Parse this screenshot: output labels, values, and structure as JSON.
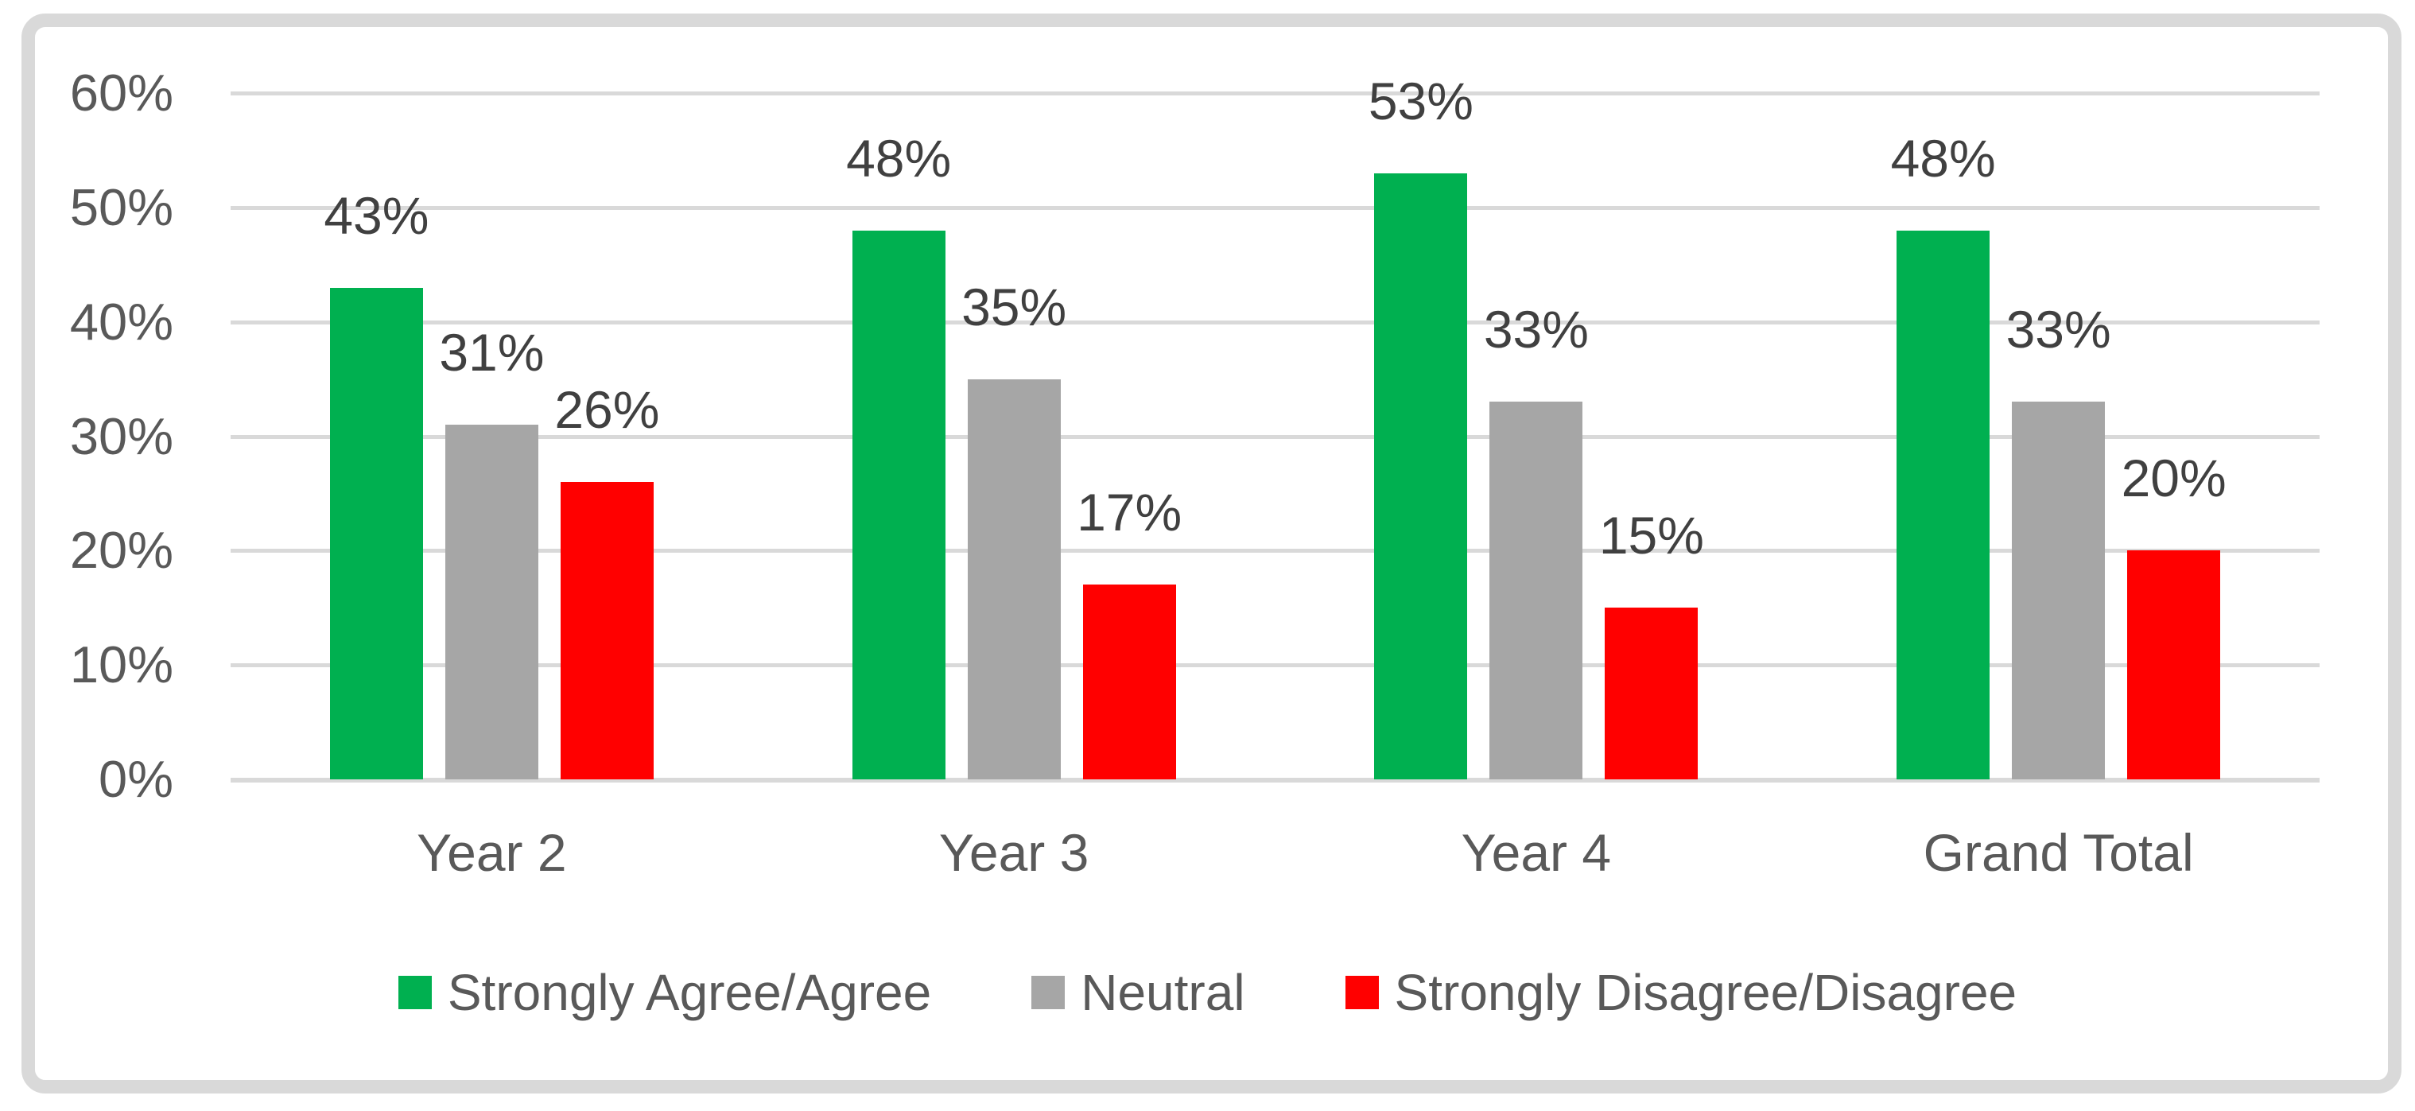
{
  "chart_data": {
    "type": "bar",
    "categories": [
      "Year 2",
      "Year 3",
      "Year 4",
      "Grand Total"
    ],
    "series": [
      {
        "name": "Strongly Agree/Agree",
        "color": "#00b050",
        "values": [
          43,
          48,
          53,
          48
        ]
      },
      {
        "name": "Neutral",
        "color": "#a6a6a6",
        "values": [
          31,
          35,
          33,
          33
        ]
      },
      {
        "name": "Strongly Disagree/Disagree",
        "color": "#ff0000",
        "values": [
          26,
          17,
          15,
          20
        ]
      }
    ],
    "data_labels": [
      [
        "43%",
        "48%",
        "53%",
        "48%"
      ],
      [
        "31%",
        "35%",
        "33%",
        "33%"
      ],
      [
        "26%",
        "17%",
        "15%",
        "20%"
      ]
    ],
    "value_suffix": "%",
    "y_ticks": [
      "0%",
      "10%",
      "20%",
      "30%",
      "40%",
      "50%",
      "60%"
    ],
    "ylim": [
      0,
      60
    ],
    "grid": true,
    "legend_position": "bottom",
    "style": {
      "grid_color": "#d9d9d9",
      "frame_border_color": "#d9d9d9",
      "axis_text_color": "#595959",
      "data_label_color": "#404040",
      "background": "#ffffff"
    }
  }
}
